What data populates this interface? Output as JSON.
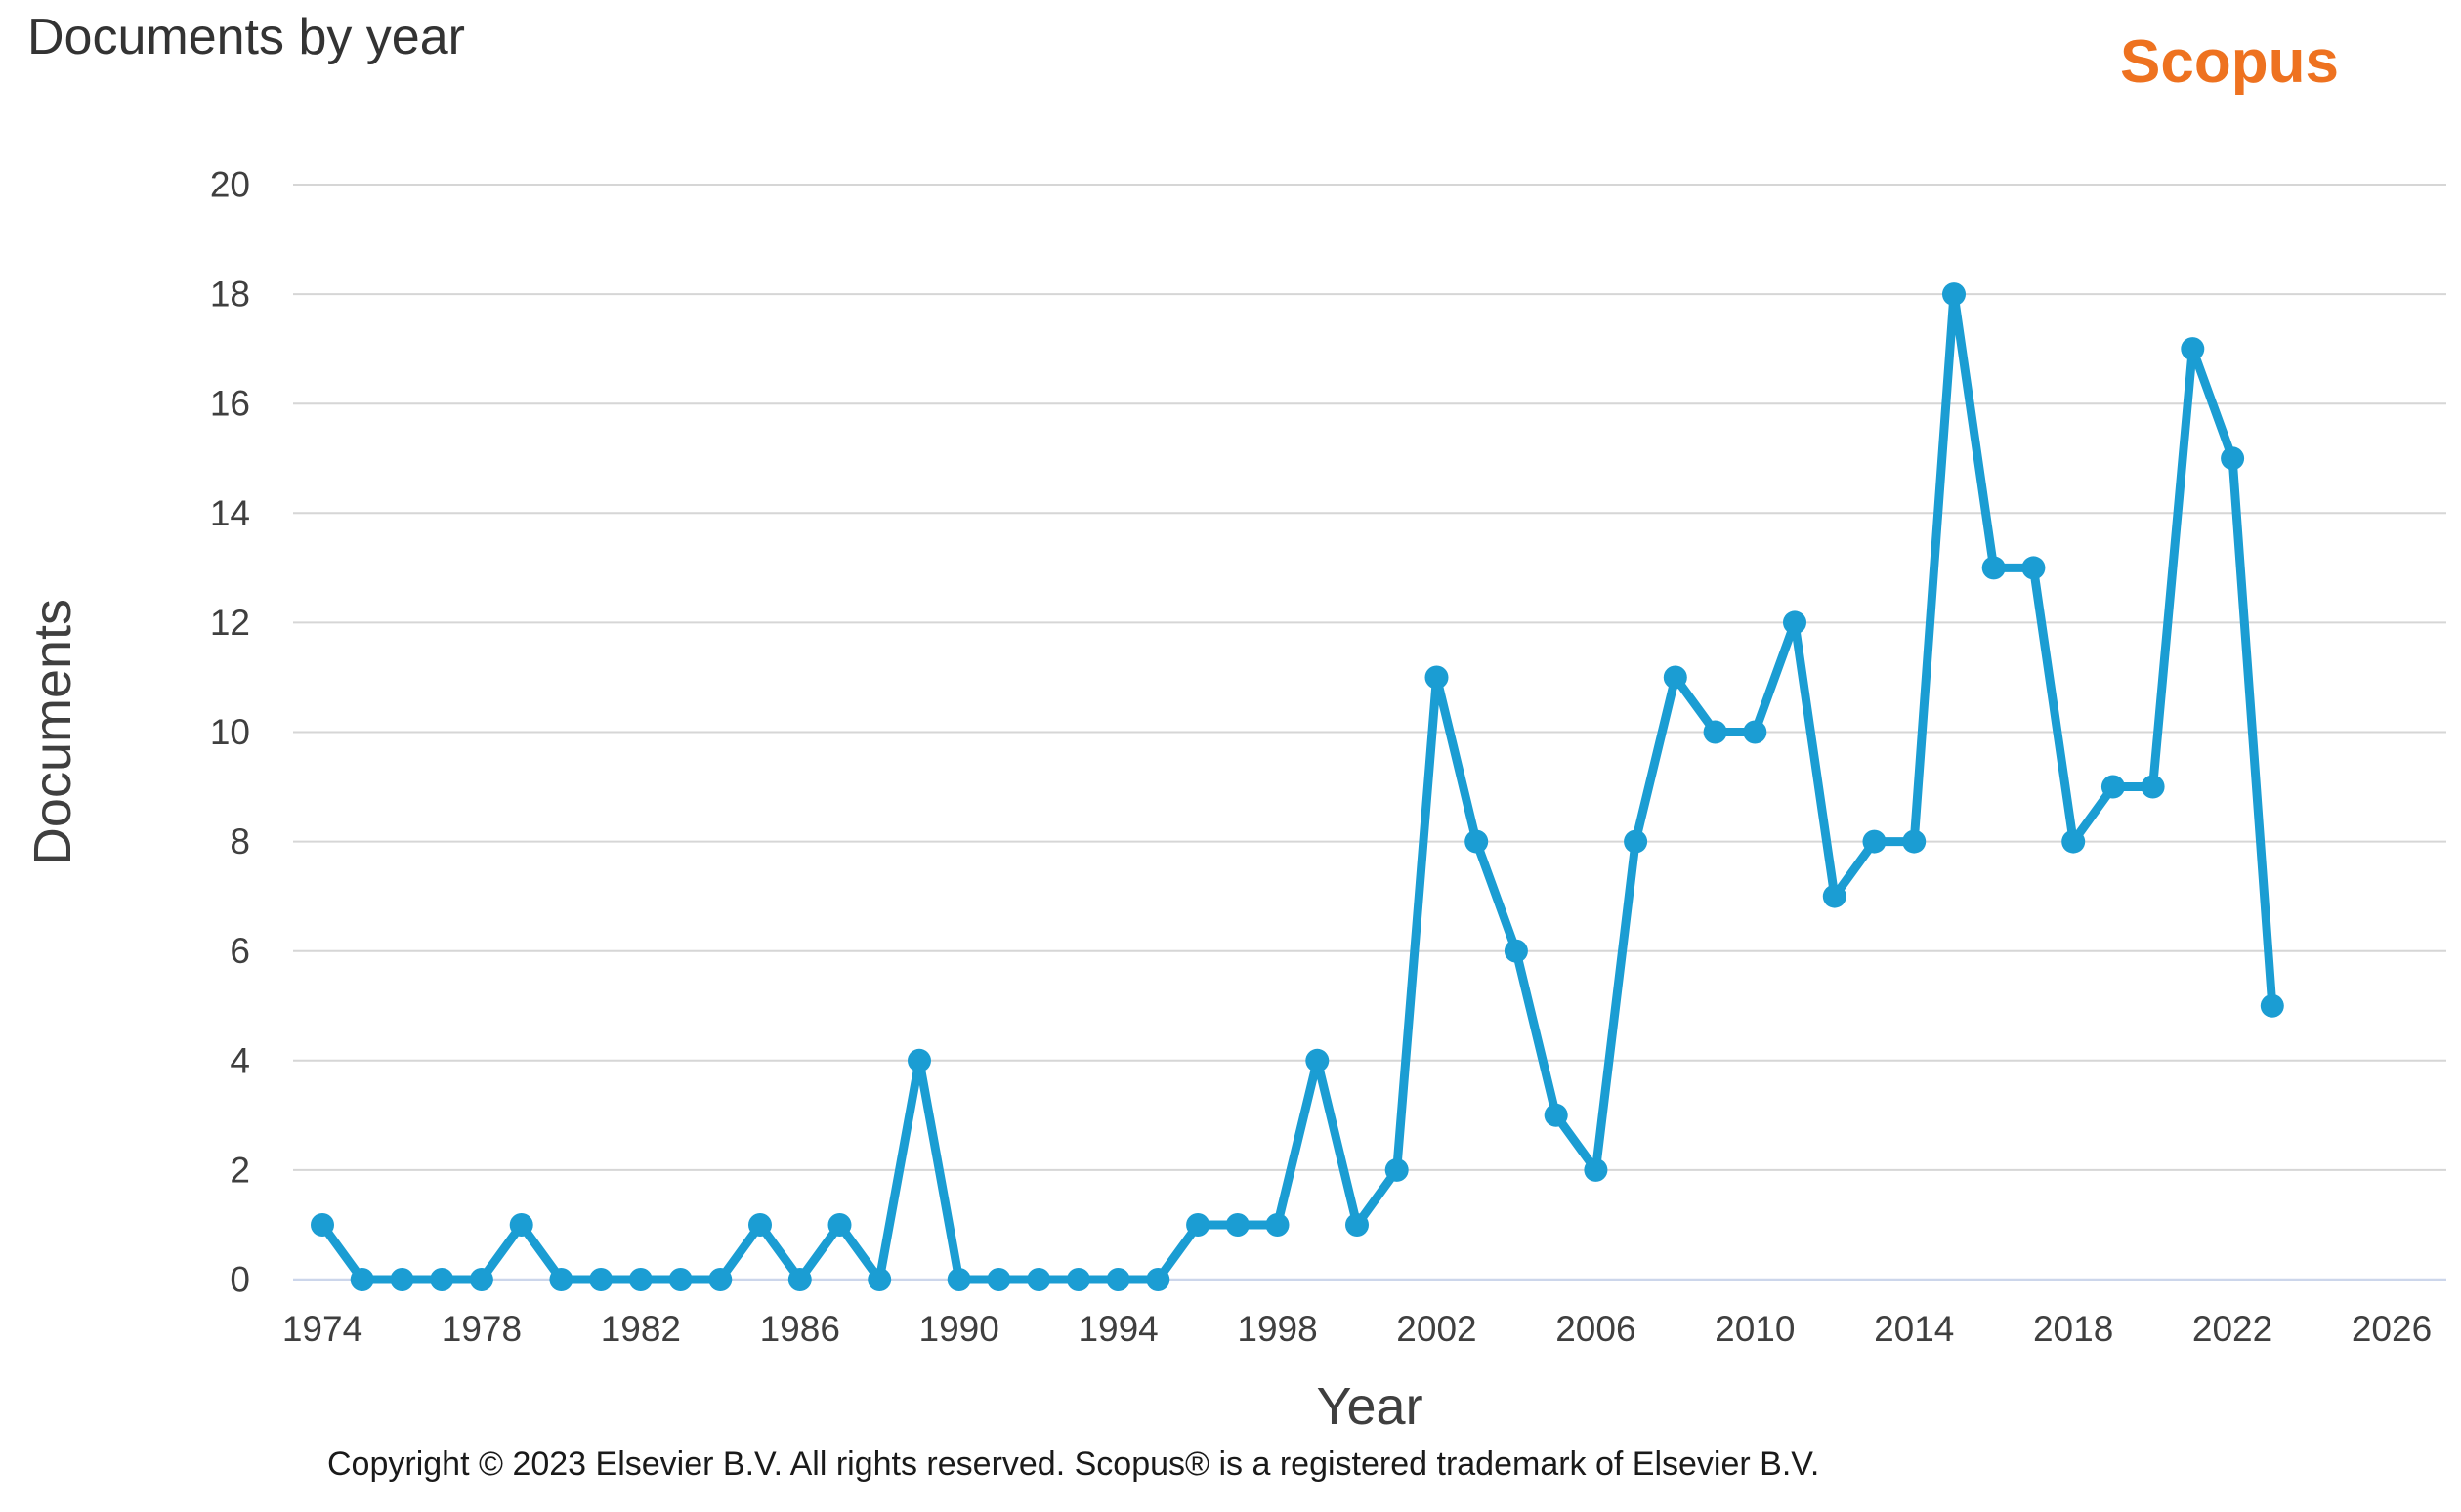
{
  "header": {
    "title": "Documents by year",
    "logo_text": "Scopus"
  },
  "chart_data": {
    "type": "line",
    "title": "Documents by year",
    "xlabel": "Year",
    "ylabel": "Documents",
    "series": [
      {
        "name": "Documents",
        "x": [
          1974,
          1975,
          1976,
          1977,
          1978,
          1979,
          1980,
          1981,
          1982,
          1983,
          1984,
          1985,
          1986,
          1987,
          1988,
          1989,
          1990,
          1991,
          1992,
          1993,
          1994,
          1995,
          1996,
          1997,
          1998,
          1999,
          2000,
          2001,
          2002,
          2003,
          2004,
          2005,
          2006,
          2007,
          2008,
          2009,
          2010,
          2011,
          2012,
          2013,
          2014,
          2015,
          2016,
          2017,
          2018,
          2019,
          2020,
          2021,
          2022,
          2023
        ],
        "values": [
          1,
          0,
          0,
          0,
          0,
          1,
          0,
          0,
          0,
          0,
          0,
          1,
          0,
          1,
          0,
          4,
          0,
          0,
          0,
          0,
          0,
          0,
          1,
          1,
          1,
          4,
          1,
          2,
          11,
          8,
          6,
          3,
          2,
          8,
          11,
          10,
          10,
          12,
          7,
          8,
          8,
          18,
          13,
          13,
          8,
          9,
          9,
          17,
          15,
          5
        ]
      }
    ],
    "xticks": [
      1974,
      1978,
      1982,
      1986,
      1990,
      1994,
      1998,
      2002,
      2006,
      2010,
      2014,
      2018,
      2022,
      2026
    ],
    "yticks": [
      0,
      2,
      4,
      6,
      8,
      10,
      12,
      14,
      16,
      18,
      20
    ],
    "xlim": [
      1973,
      2027
    ],
    "ylim": [
      0,
      20
    ],
    "grid": true,
    "legend": false,
    "marker": "circle"
  },
  "colors": {
    "line": "#1b9dd3",
    "grid": "#d6d6d6",
    "zero_axis_line": "#ccd6eb",
    "title_text": "#333333",
    "tick_text": "#3f3f3f",
    "axis_title_text": "#3f3f3f",
    "logo_orange": "#ee7220",
    "copyright_text": "#1a1a1a"
  },
  "footer": {
    "copyright": "Copyright © 2023 Elsevier B.V. All rights reserved. Scopus® is a registered trademark of Elsevier B.V."
  }
}
